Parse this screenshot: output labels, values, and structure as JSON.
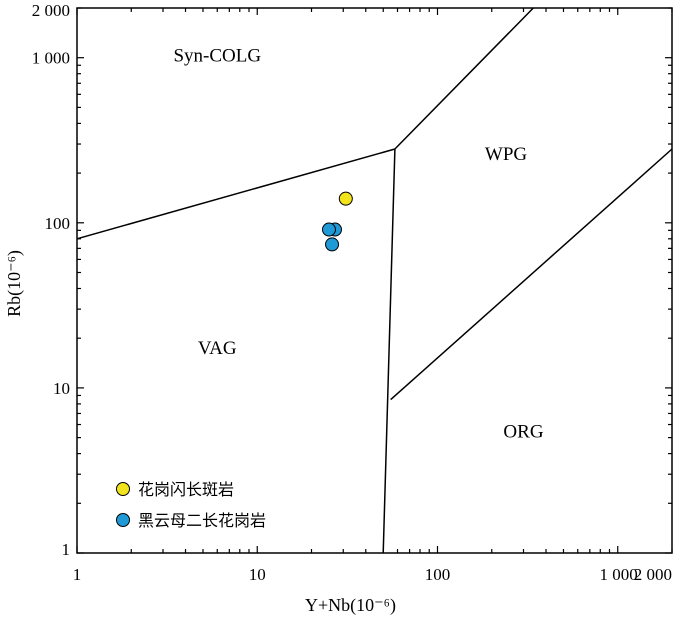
{
  "chart_data": {
    "type": "scatter",
    "x_scale": "log",
    "y_scale": "log",
    "xlim": [
      1,
      2000
    ],
    "ylim": [
      1,
      2000
    ],
    "xlabel": "Y+Nb(10⁻⁶)",
    "ylabel": "Rb(10⁻⁶)",
    "x_ticks": [
      {
        "value": 1,
        "label": "1"
      },
      {
        "value": 10,
        "label": "10"
      },
      {
        "value": 100,
        "label": "100"
      },
      {
        "value": 1000,
        "label": "1 000"
      },
      {
        "value": 2000,
        "label": "2 000"
      }
    ],
    "y_ticks": [
      {
        "value": 1,
        "label": "1"
      },
      {
        "value": 10,
        "label": "10"
      },
      {
        "value": 100,
        "label": "100"
      },
      {
        "value": 1000,
        "label": "1 000"
      },
      {
        "value": 2000,
        "label": "2 000"
      }
    ],
    "regions": [
      {
        "label": "Syn-COLG",
        "x": 6,
        "y": 950
      },
      {
        "label": "WPG",
        "x": 240,
        "y": 240
      },
      {
        "label": "VAG",
        "x": 6,
        "y": 16
      },
      {
        "label": "ORG",
        "x": 300,
        "y": 5
      }
    ],
    "boundaries": [
      {
        "points": [
          [
            1,
            80
          ],
          [
            58,
            280
          ]
        ]
      },
      {
        "points": [
          [
            58,
            280
          ],
          [
            340,
            2000
          ]
        ]
      },
      {
        "points": [
          [
            58,
            280
          ],
          [
            50,
            1
          ]
        ]
      },
      {
        "points": [
          [
            55,
            8.5
          ],
          [
            2000,
            280
          ]
        ]
      }
    ],
    "series": [
      {
        "name": "花岗闪长斑岩",
        "color": "#f2e41c",
        "points": [
          [
            31,
            140
          ]
        ]
      },
      {
        "name": "黑云母二长花岗岩",
        "color": "#1f9ad6",
        "points": [
          [
            27,
            91
          ],
          [
            25,
            91
          ],
          [
            26,
            74
          ]
        ]
      }
    ],
    "grid": false,
    "legend_position": "bottom-left"
  }
}
